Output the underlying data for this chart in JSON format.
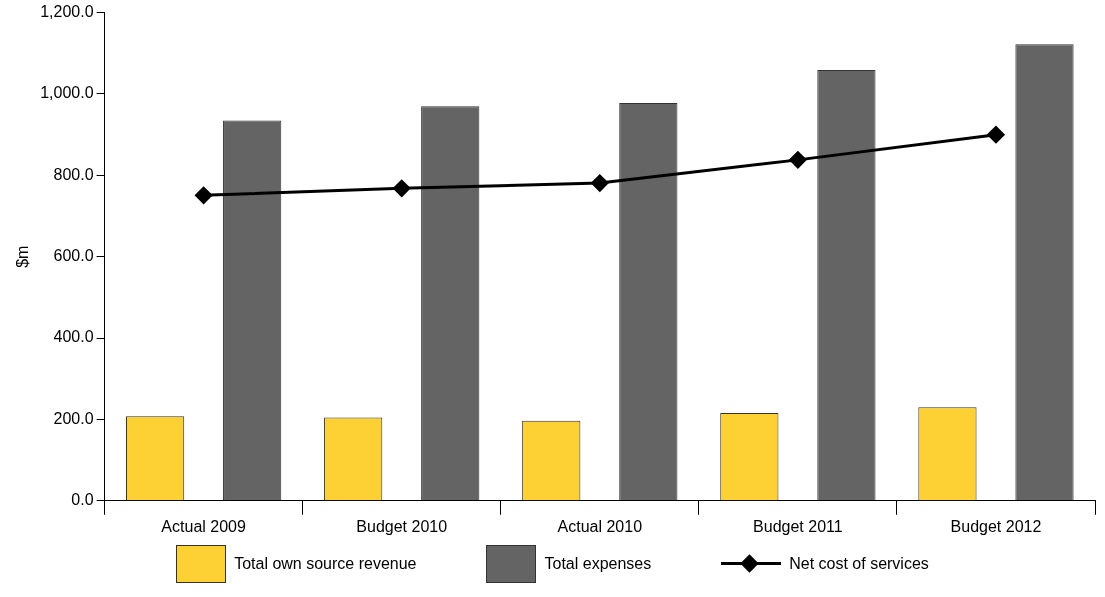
{
  "chart_data": {
    "type": "bar",
    "ylabel": "$m",
    "categories": [
      "Actual 2009",
      "Budget 2010",
      "Actual 2010",
      "Budget 2011",
      "Budget 2012"
    ],
    "series": [
      {
        "name": "Total own source revenue",
        "color": "#fdd033",
        "values": [
          208,
          205,
          197,
          216,
          230
        ]
      },
      {
        "name": "Total expenses",
        "color": "#646464",
        "values": [
          935,
          970,
          978,
          1059,
          1122
        ]
      },
      {
        "name": "Net cost of services",
        "type": "line",
        "color": "#000000",
        "marker": "diamond",
        "values": [
          751,
          768,
          781,
          838,
          900
        ]
      }
    ],
    "ylim": [
      0,
      1200
    ],
    "yticks": [
      {
        "value": 0,
        "label": "0.0"
      },
      {
        "value": 200,
        "label": "200.0"
      },
      {
        "value": 400,
        "label": "400.0"
      },
      {
        "value": 600,
        "label": "600.0"
      },
      {
        "value": 800,
        "label": "800.0"
      },
      {
        "value": 1000,
        "label": "1,000.0"
      },
      {
        "value": 1200,
        "label": "1,200.0"
      }
    ],
    "grid": false,
    "legend": "bottom"
  }
}
